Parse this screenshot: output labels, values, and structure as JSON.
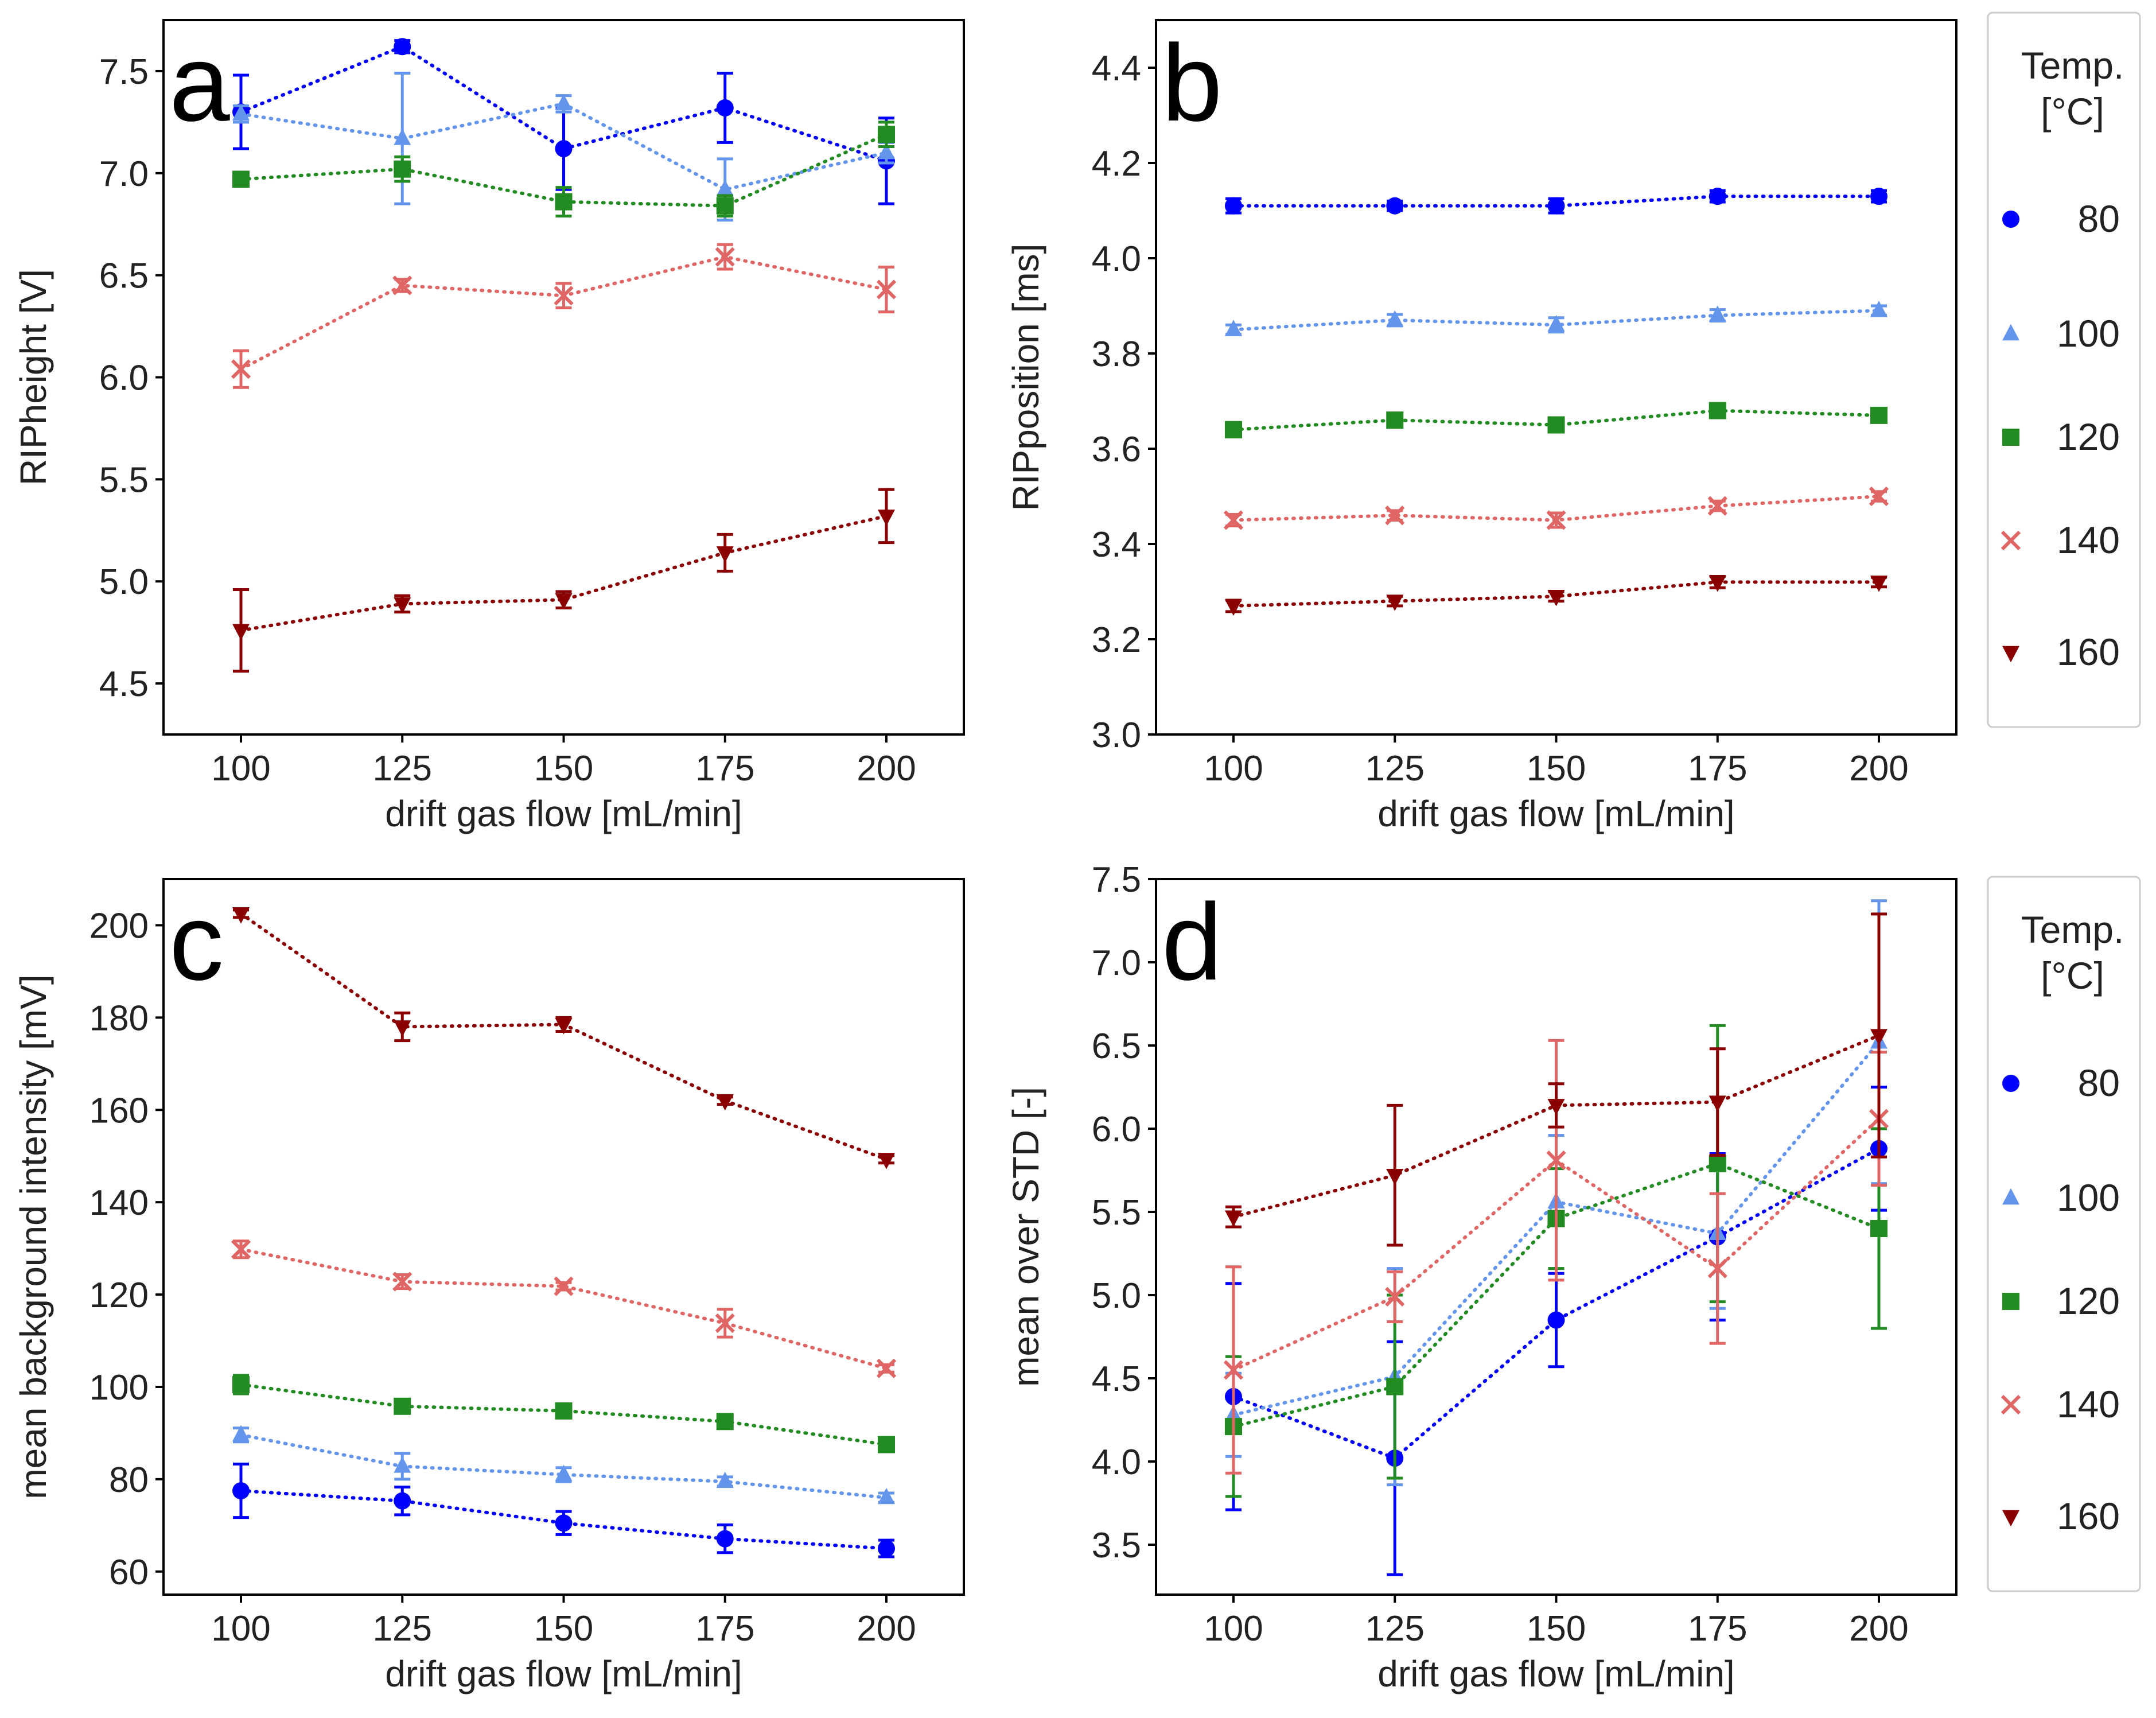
{
  "colors": {
    "80": "#0000ff",
    "100": "#6495ed",
    "120": "#228b22",
    "140": "#e06666",
    "160": "#8b0000"
  },
  "legend": {
    "title_line1": "Temp.",
    "title_line2": "[°C]",
    "entries": [
      {
        "label": "80",
        "marker": "circle",
        "key": "80"
      },
      {
        "label": "100",
        "marker": "triangle-up",
        "key": "100"
      },
      {
        "label": "120",
        "marker": "square",
        "key": "120"
      },
      {
        "label": "140",
        "marker": "x",
        "key": "140"
      },
      {
        "label": "160",
        "marker": "triangle-down",
        "key": "160"
      }
    ]
  },
  "chart_data": [
    {
      "panel": "a",
      "type": "line",
      "xlabel": "drift gas flow [mL/min]",
      "ylabel": "RIPheight [V]",
      "xlim": [
        88,
        212
      ],
      "ylim": [
        4.25,
        7.75
      ],
      "xticks": [
        100,
        125,
        150,
        175,
        200
      ],
      "yticks": [
        4.5,
        5.0,
        5.5,
        6.0,
        6.5,
        7.0,
        7.5
      ],
      "ytick_labels": [
        "4.5",
        "5.0",
        "5.5",
        "6.0",
        "6.5",
        "7.0",
        "7.5"
      ],
      "x": [
        100,
        125,
        150,
        175,
        200
      ],
      "series": [
        {
          "name": "80",
          "values": [
            7.3,
            7.62,
            7.12,
            7.32,
            7.06
          ],
          "err": [
            0.18,
            0.03,
            0.2,
            0.17,
            0.21
          ]
        },
        {
          "name": "100",
          "values": [
            7.29,
            7.17,
            7.34,
            6.92,
            7.1
          ],
          "err": [
            0.04,
            0.32,
            0.04,
            0.15,
            0.05
          ]
        },
        {
          "name": "120",
          "values": [
            6.97,
            7.02,
            6.86,
            6.84,
            7.19
          ],
          "err": [
            0.03,
            0.06,
            0.07,
            0.05,
            0.06
          ]
        },
        {
          "name": "140",
          "values": [
            6.04,
            6.45,
            6.4,
            6.59,
            6.43
          ],
          "err": [
            0.09,
            0.03,
            0.06,
            0.06,
            0.11
          ]
        },
        {
          "name": "160",
          "values": [
            4.76,
            4.89,
            4.91,
            5.14,
            5.32
          ],
          "err": [
            0.2,
            0.04,
            0.04,
            0.09,
            0.13
          ]
        }
      ]
    },
    {
      "panel": "b",
      "type": "line",
      "xlabel": "drift gas flow [mL/min]",
      "ylabel": "RIPposition  [ms]",
      "xlim": [
        88,
        212
      ],
      "ylim": [
        3.0,
        4.5
      ],
      "xticks": [
        100,
        125,
        150,
        175,
        200
      ],
      "yticks": [
        3.0,
        3.2,
        3.4,
        3.6,
        3.8,
        4.0,
        4.2,
        4.4
      ],
      "ytick_labels": [
        "3.0",
        "3.2",
        "3.4",
        "3.6",
        "3.8",
        "4.0",
        "4.2",
        "4.4"
      ],
      "x": [
        100,
        125,
        150,
        175,
        200
      ],
      "series": [
        {
          "name": "80",
          "values": [
            4.11,
            4.11,
            4.11,
            4.13,
            4.13
          ],
          "err": [
            0.015,
            0.01,
            0.015,
            0.012,
            0.012
          ]
        },
        {
          "name": "100",
          "values": [
            3.85,
            3.87,
            3.86,
            3.88,
            3.89
          ],
          "err": [
            0.01,
            0.012,
            0.015,
            0.012,
            0.01
          ]
        },
        {
          "name": "120",
          "values": [
            3.64,
            3.66,
            3.65,
            3.68,
            3.67
          ],
          "err": [
            0.015,
            0.015,
            0.012,
            0.012,
            0.01
          ]
        },
        {
          "name": "140",
          "values": [
            3.45,
            3.46,
            3.45,
            3.48,
            3.5
          ],
          "err": [
            0.012,
            0.01,
            0.015,
            0.01,
            0.01
          ]
        },
        {
          "name": "160",
          "values": [
            3.27,
            3.28,
            3.29,
            3.32,
            3.32
          ],
          "err": [
            0.012,
            0.01,
            0.01,
            0.012,
            0.01
          ]
        }
      ]
    },
    {
      "panel": "c",
      "type": "line",
      "xlabel": "drift gas flow [mL/min]",
      "ylabel": "mean background intensity [mV]",
      "xlim": [
        88,
        212
      ],
      "ylim": [
        55,
        210
      ],
      "xticks": [
        100,
        125,
        150,
        175,
        200
      ],
      "yticks": [
        60,
        80,
        100,
        120,
        140,
        160,
        180,
        200
      ],
      "ytick_labels": [
        "60",
        "80",
        "100",
        "120",
        "140",
        "160",
        "180",
        "200"
      ],
      "x": [
        100,
        125,
        150,
        175,
        200
      ],
      "series": [
        {
          "name": "80",
          "values": [
            77.5,
            75.3,
            70.5,
            67.1,
            65.0
          ],
          "err": [
            5.8,
            3.0,
            2.5,
            3.0,
            1.8
          ]
        },
        {
          "name": "100",
          "values": [
            89.6,
            82.8,
            81.0,
            79.5,
            76.0
          ],
          "err": [
            1.5,
            2.8,
            1.5,
            1.0,
            1.0
          ]
        },
        {
          "name": "120",
          "values": [
            100.5,
            95.8,
            94.8,
            92.5,
            87.5
          ],
          "err": [
            2.0,
            1.5,
            1.0,
            1.0,
            1.0
          ]
        },
        {
          "name": "140",
          "values": [
            129.8,
            122.8,
            121.8,
            113.8,
            104.0
          ],
          "err": [
            1.8,
            1.5,
            0.8,
            3.0,
            0.8
          ]
        },
        {
          "name": "160",
          "values": [
            202.5,
            178.0,
            178.5,
            162.0,
            149.3
          ],
          "err": [
            0.8,
            3.0,
            1.5,
            0.8,
            0.8
          ]
        }
      ]
    },
    {
      "panel": "d",
      "type": "line",
      "xlabel": "drift gas flow [mL/min]",
      "ylabel": "mean over STD [-]",
      "xlim": [
        88,
        212
      ],
      "ylim": [
        3.2,
        7.5
      ],
      "xticks": [
        100,
        125,
        150,
        175,
        200
      ],
      "yticks": [
        3.5,
        4.0,
        4.5,
        5.0,
        5.5,
        6.0,
        6.5,
        7.0,
        7.5
      ],
      "ytick_labels": [
        "3.5",
        "4.0",
        "4.5",
        "5.0",
        "5.5",
        "6.0",
        "6.5",
        "7.0",
        "7.5"
      ],
      "x": [
        100,
        125,
        150,
        175,
        200
      ],
      "series": [
        {
          "name": "80",
          "values": [
            4.39,
            4.02,
            4.85,
            5.35,
            5.88
          ],
          "err": [
            0.68,
            0.7,
            0.28,
            0.5,
            0.37
          ]
        },
        {
          "name": "100",
          "values": [
            4.28,
            4.51,
            5.56,
            5.37,
            6.52
          ],
          "err": [
            0.25,
            0.65,
            0.4,
            0.45,
            0.85
          ]
        },
        {
          "name": "120",
          "values": [
            4.21,
            4.45,
            5.46,
            5.79,
            5.4
          ],
          "err": [
            0.42,
            0.55,
            0.3,
            0.83,
            0.6
          ]
        },
        {
          "name": "140",
          "values": [
            4.55,
            4.99,
            5.81,
            5.16,
            6.06
          ],
          "err": [
            0.62,
            0.15,
            0.72,
            0.45,
            0.4
          ]
        },
        {
          "name": "160",
          "values": [
            5.47,
            5.72,
            6.14,
            6.16,
            6.56
          ],
          "err": [
            0.06,
            0.42,
            0.13,
            0.32,
            0.73
          ]
        }
      ]
    }
  ]
}
